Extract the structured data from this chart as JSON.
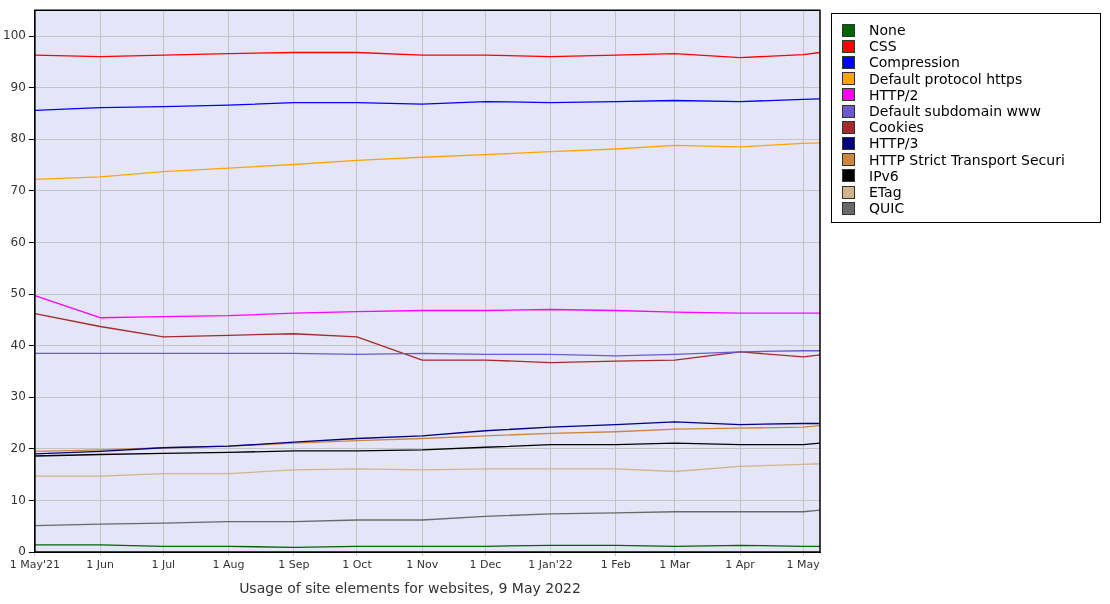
{
  "chart_data": {
    "type": "line",
    "title": "Usage of site elements for websites, 9 May 2022",
    "x": [
      "2021-05-01",
      "2021-06-01",
      "2021-07-01",
      "2021-08-01",
      "2021-09-01",
      "2021-10-01",
      "2021-11-01",
      "2021-12-01",
      "2022-01-01",
      "2022-02-01",
      "2022-03-01",
      "2022-04-01",
      "2022-05-01",
      "2022-05-09"
    ],
    "xlim": [
      "2021-05-01",
      "2022-05-09"
    ],
    "xticks": [
      {
        "value": "2021-05-01",
        "label": "1 May'21"
      },
      {
        "value": "2021-06-01",
        "label": "1 Jun"
      },
      {
        "value": "2021-07-01",
        "label": "1 Jul"
      },
      {
        "value": "2021-08-01",
        "label": "1 Aug"
      },
      {
        "value": "2021-09-01",
        "label": "1 Sep"
      },
      {
        "value": "2021-10-01",
        "label": "1 Oct"
      },
      {
        "value": "2021-11-01",
        "label": "1 Nov"
      },
      {
        "value": "2021-12-01",
        "label": "1 Dec"
      },
      {
        "value": "2022-01-01",
        "label": "1 Jan'22"
      },
      {
        "value": "2022-02-01",
        "label": "1 Feb"
      },
      {
        "value": "2022-03-01",
        "label": "1 Mar"
      },
      {
        "value": "2022-04-01",
        "label": "1 Apr"
      },
      {
        "value": "2022-05-01",
        "label": "1 May"
      }
    ],
    "ylim": [
      0,
      105
    ],
    "yticks": [
      0,
      10,
      20,
      30,
      40,
      50,
      60,
      70,
      80,
      90,
      100
    ],
    "grid": true,
    "legend": "right",
    "marker": "none",
    "line_style": "solid",
    "series": [
      {
        "name": "None",
        "color": "#006400",
        "values": [
          1.4,
          1.4,
          1.1,
          1.1,
          0.9,
          1.1,
          1.1,
          1.1,
          1.3,
          1.3,
          1.1,
          1.3,
          1.1,
          1.1
        ]
      },
      {
        "name": "CSS",
        "color": "#ff0000",
        "values": [
          96.3,
          96.0,
          96.3,
          96.6,
          96.8,
          96.8,
          96.3,
          96.3,
          96.0,
          96.3,
          96.6,
          95.8,
          96.4,
          96.8
        ]
      },
      {
        "name": "Compression",
        "color": "#0000ff",
        "values": [
          85.6,
          86.1,
          86.3,
          86.6,
          87.1,
          87.1,
          86.8,
          87.3,
          87.1,
          87.3,
          87.5,
          87.3,
          87.7,
          87.8
        ]
      },
      {
        "name": "Default protocol https",
        "color": "#ffa500",
        "values": [
          72.2,
          72.7,
          73.7,
          74.4,
          75.1,
          75.9,
          76.5,
          77.0,
          77.6,
          78.1,
          78.8,
          78.5,
          79.2,
          79.3
        ]
      },
      {
        "name": "HTTP/2",
        "color": "#ff00ff",
        "values": [
          49.7,
          45.4,
          45.6,
          45.8,
          46.3,
          46.6,
          46.8,
          46.8,
          47.0,
          46.8,
          46.5,
          46.3,
          46.3,
          46.3
        ]
      },
      {
        "name": "Default subdomain www",
        "color": "#6a5acd",
        "values": [
          38.5,
          38.5,
          38.5,
          38.5,
          38.5,
          38.3,
          38.5,
          38.3,
          38.3,
          38.0,
          38.3,
          38.8,
          39.0,
          39.0
        ]
      },
      {
        "name": "Cookies",
        "color": "#a52a2a",
        "values": [
          46.2,
          43.7,
          41.7,
          42.0,
          42.3,
          41.7,
          37.2,
          37.2,
          36.7,
          37.0,
          37.2,
          38.8,
          37.8,
          38.2
        ]
      },
      {
        "name": "HTTP/3",
        "color": "#000080",
        "values": [
          19.0,
          19.5,
          20.2,
          20.5,
          21.3,
          22.0,
          22.5,
          23.5,
          24.2,
          24.7,
          25.2,
          24.7,
          24.9,
          24.9
        ]
      },
      {
        "name": "HTTP Strict Transport Securi",
        "color": "#cd853f",
        "values": [
          19.5,
          19.8,
          20.2,
          20.5,
          21.1,
          21.6,
          22.0,
          22.5,
          23.0,
          23.3,
          23.8,
          24.0,
          24.2,
          24.5
        ]
      },
      {
        "name": "IPv6",
        "color": "#000000",
        "values": [
          18.6,
          18.9,
          19.1,
          19.3,
          19.6,
          19.6,
          19.8,
          20.3,
          20.8,
          20.8,
          21.1,
          20.8,
          20.8,
          21.1
        ]
      },
      {
        "name": "ETag",
        "color": "#d2b48c",
        "values": [
          14.7,
          14.7,
          15.2,
          15.2,
          15.9,
          16.1,
          15.9,
          16.1,
          16.1,
          16.1,
          15.6,
          16.6,
          17.0,
          17.1
        ]
      },
      {
        "name": "QUIC",
        "color": "#696969",
        "values": [
          5.1,
          5.4,
          5.6,
          5.9,
          5.9,
          6.2,
          6.2,
          6.9,
          7.4,
          7.6,
          7.8,
          7.8,
          7.8,
          8.1
        ]
      }
    ]
  }
}
